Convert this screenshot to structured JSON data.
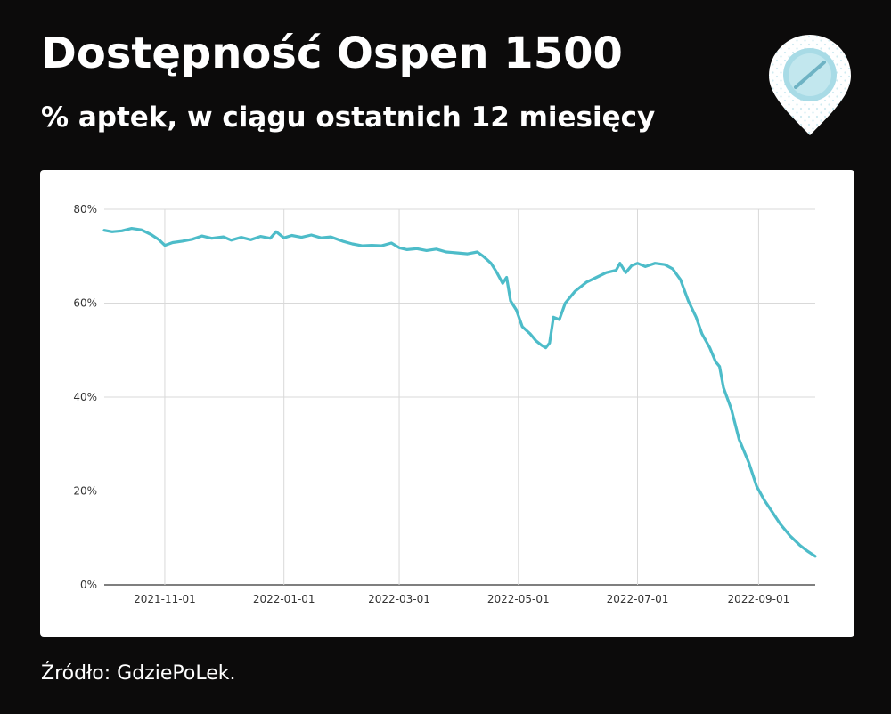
{
  "header": {
    "title": "Dostępność Ospen 1500",
    "subtitle": "% aptek, w ciągu ostatnich 12 miesięcy"
  },
  "logo": {
    "icon": "pill-location-pin-icon",
    "pin_color": "#ffffff",
    "pill_color": "#a8dbe6"
  },
  "footer": {
    "source": "Źródło: GdziePoLek."
  },
  "chart_data": {
    "type": "line",
    "title": "",
    "xlabel": "",
    "ylabel": "",
    "ylim": [
      0,
      80
    ],
    "xlim": [
      "2021-10-01",
      "2022-09-30"
    ],
    "grid": true,
    "legend": "none",
    "line_color": "#4dbcc9",
    "yticks": [
      0,
      20,
      40,
      60,
      80
    ],
    "ytick_labels": [
      "0%",
      "20%",
      "40%",
      "60%",
      "80%"
    ],
    "xticks": [
      "2021-11-01",
      "2022-01-01",
      "2022-03-01",
      "2022-05-01",
      "2022-07-01",
      "2022-09-01"
    ],
    "xtick_labels": [
      "2021-11-01",
      "2022-01-01",
      "2022-03-01",
      "2022-05-01",
      "2022-07-01",
      "2022-09-01"
    ],
    "series": [
      {
        "name": "",
        "points": [
          [
            "2021-10-01",
            75.5
          ],
          [
            "2021-10-05",
            75.2
          ],
          [
            "2021-10-10",
            75.4
          ],
          [
            "2021-10-15",
            75.9
          ],
          [
            "2021-10-20",
            75.6
          ],
          [
            "2021-10-25",
            74.6
          ],
          [
            "2021-10-29",
            73.5
          ],
          [
            "2021-11-01",
            72.3
          ],
          [
            "2021-11-05",
            72.9
          ],
          [
            "2021-11-10",
            73.2
          ],
          [
            "2021-11-15",
            73.6
          ],
          [
            "2021-11-20",
            74.3
          ],
          [
            "2021-11-25",
            73.8
          ],
          [
            "2021-12-01",
            74.1
          ],
          [
            "2021-12-05",
            73.4
          ],
          [
            "2021-12-10",
            74.0
          ],
          [
            "2021-12-15",
            73.5
          ],
          [
            "2021-12-20",
            74.2
          ],
          [
            "2021-12-25",
            73.8
          ],
          [
            "2021-12-28",
            75.2
          ],
          [
            "2022-01-01",
            73.9
          ],
          [
            "2022-01-05",
            74.4
          ],
          [
            "2022-01-10",
            74.0
          ],
          [
            "2022-01-15",
            74.5
          ],
          [
            "2022-01-20",
            73.9
          ],
          [
            "2022-01-25",
            74.1
          ],
          [
            "2022-01-31",
            73.2
          ],
          [
            "2022-02-05",
            72.6
          ],
          [
            "2022-02-10",
            72.2
          ],
          [
            "2022-02-15",
            72.3
          ],
          [
            "2022-02-20",
            72.2
          ],
          [
            "2022-02-25",
            72.8
          ],
          [
            "2022-03-01",
            71.8
          ],
          [
            "2022-03-05",
            71.4
          ],
          [
            "2022-03-10",
            71.6
          ],
          [
            "2022-03-15",
            71.2
          ],
          [
            "2022-03-20",
            71.5
          ],
          [
            "2022-03-25",
            70.9
          ],
          [
            "2022-03-31",
            70.7
          ],
          [
            "2022-04-05",
            70.5
          ],
          [
            "2022-04-10",
            70.9
          ],
          [
            "2022-04-13",
            70.0
          ],
          [
            "2022-04-17",
            68.5
          ],
          [
            "2022-04-20",
            66.5
          ],
          [
            "2022-04-23",
            64.2
          ],
          [
            "2022-04-25",
            65.5
          ],
          [
            "2022-04-27",
            60.5
          ],
          [
            "2022-04-30",
            58.5
          ],
          [
            "2022-05-03",
            55.0
          ],
          [
            "2022-05-07",
            53.5
          ],
          [
            "2022-05-10",
            52.0
          ],
          [
            "2022-05-13",
            51.0
          ],
          [
            "2022-05-15",
            50.5
          ],
          [
            "2022-05-17",
            51.5
          ],
          [
            "2022-05-19",
            57.0
          ],
          [
            "2022-05-22",
            56.5
          ],
          [
            "2022-05-25",
            60.0
          ],
          [
            "2022-05-30",
            62.5
          ],
          [
            "2022-06-05",
            64.5
          ],
          [
            "2022-06-10",
            65.5
          ],
          [
            "2022-06-15",
            66.5
          ],
          [
            "2022-06-20",
            67.0
          ],
          [
            "2022-06-22",
            68.5
          ],
          [
            "2022-06-25",
            66.5
          ],
          [
            "2022-06-28",
            68.0
          ],
          [
            "2022-07-01",
            68.5
          ],
          [
            "2022-07-05",
            67.8
          ],
          [
            "2022-07-10",
            68.5
          ],
          [
            "2022-07-15",
            68.2
          ],
          [
            "2022-07-19",
            67.3
          ],
          [
            "2022-07-23",
            65.0
          ],
          [
            "2022-07-27",
            60.5
          ],
          [
            "2022-07-31",
            57.0
          ],
          [
            "2022-08-03",
            53.5
          ],
          [
            "2022-08-07",
            50.5
          ],
          [
            "2022-08-10",
            47.5
          ],
          [
            "2022-08-12",
            46.5
          ],
          [
            "2022-08-14",
            42.0
          ],
          [
            "2022-08-18",
            37.5
          ],
          [
            "2022-08-22",
            31.0
          ],
          [
            "2022-08-27",
            26.0
          ],
          [
            "2022-08-31",
            21.0
          ],
          [
            "2022-09-04",
            18.0
          ],
          [
            "2022-09-08",
            15.5
          ],
          [
            "2022-09-12",
            13.0
          ],
          [
            "2022-09-17",
            10.5
          ],
          [
            "2022-09-22",
            8.5
          ],
          [
            "2022-09-26",
            7.2
          ],
          [
            "2022-09-30",
            6.1
          ]
        ]
      }
    ]
  }
}
